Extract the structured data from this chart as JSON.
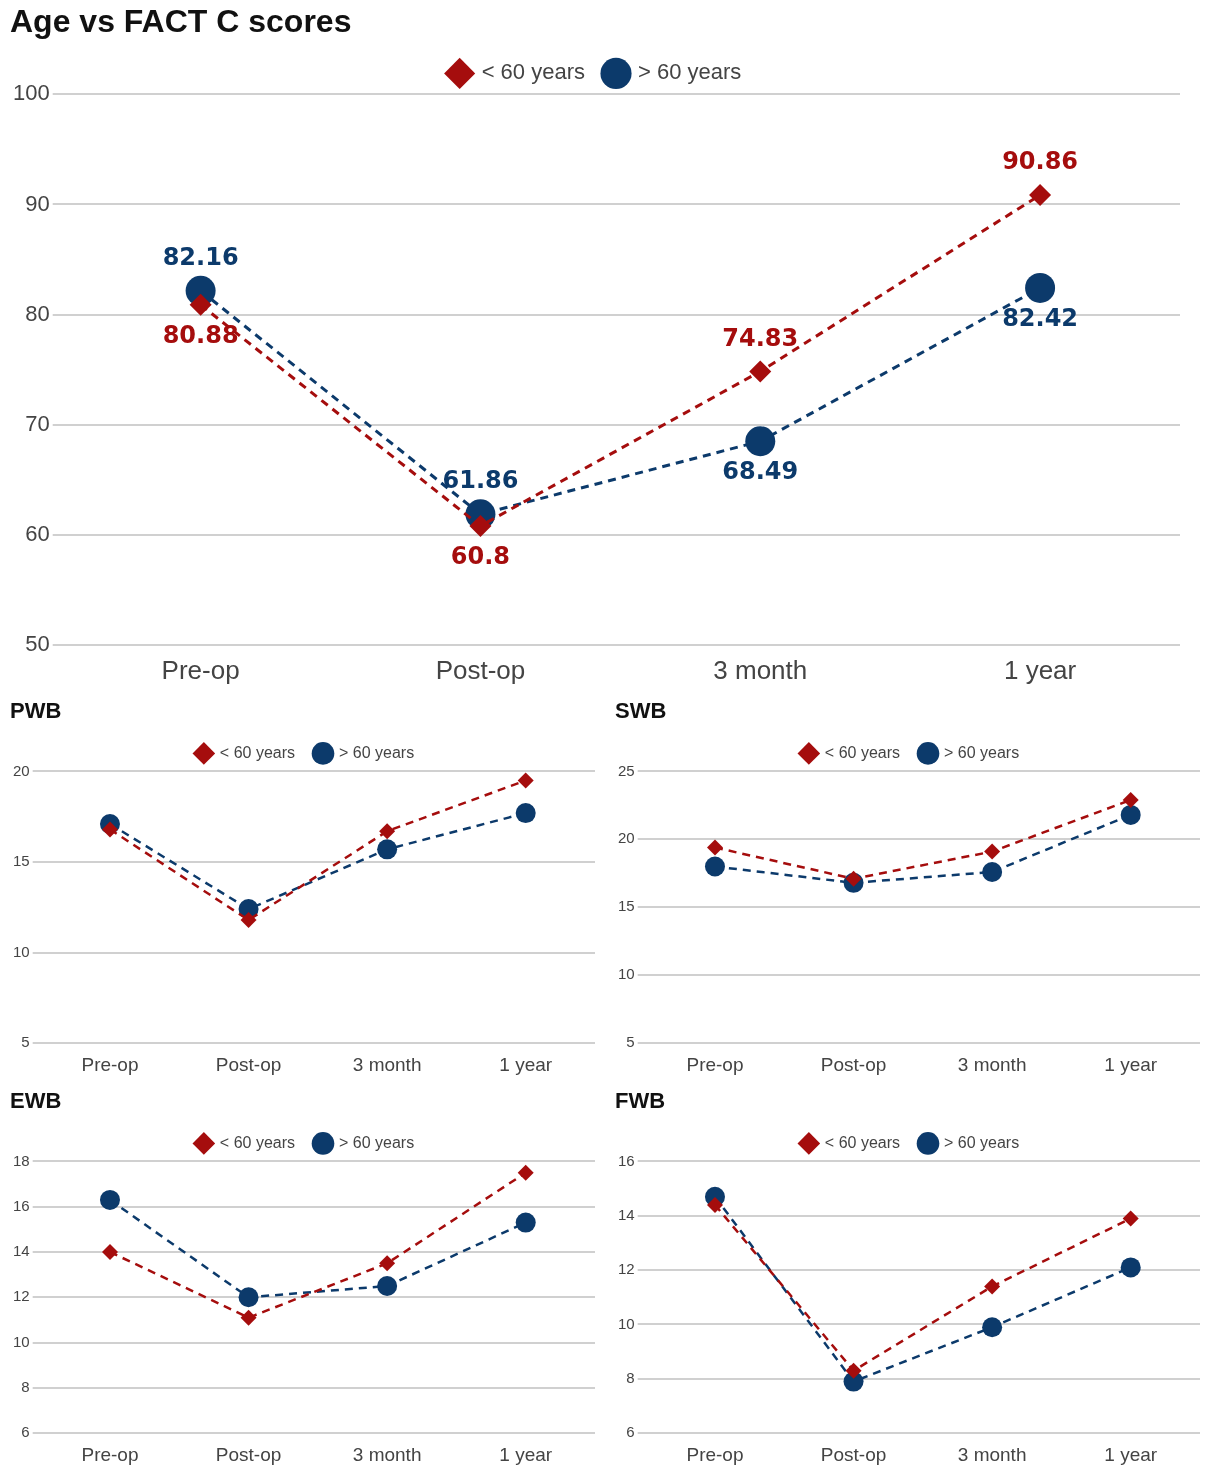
{
  "chart_data": [
    {
      "type": "line",
      "title": "Age vs FACT C scores",
      "categories": [
        "Pre-op",
        "Post-op",
        "3 month",
        "1 year"
      ],
      "series": [
        {
          "name": "< 60 years",
          "color": "#a50d0d",
          "marker": "diamond",
          "values": [
            80.88,
            60.8,
            74.83,
            90.86
          ]
        },
        {
          "name": "> 60 years",
          "color": "#0c3a6b",
          "marker": "circle",
          "values": [
            82.16,
            61.86,
            68.49,
            82.42
          ]
        }
      ],
      "ylim": [
        50,
        100
      ],
      "yticks": [
        50,
        60,
        70,
        80,
        90,
        100
      ],
      "grid": "y",
      "legend": "top",
      "line_style": "dashed",
      "data_labels": true
    },
    {
      "type": "line",
      "title": "PWB",
      "categories": [
        "Pre-op",
        "Post-op",
        "3 month",
        "1 year"
      ],
      "series": [
        {
          "name": "< 60 years",
          "color": "#a50d0d",
          "marker": "diamond",
          "values": [
            16.8,
            11.8,
            16.7,
            19.5
          ]
        },
        {
          "name": "> 60 years",
          "color": "#0c3a6b",
          "marker": "circle",
          "values": [
            17.1,
            12.4,
            15.7,
            17.7
          ]
        }
      ],
      "ylim": [
        5,
        20
      ],
      "yticks": [
        5,
        10,
        15,
        20
      ],
      "grid": "y",
      "legend": "top",
      "line_style": "dashed"
    },
    {
      "type": "line",
      "title": "SWB",
      "categories": [
        "Pre-op",
        "Post-op",
        "3 month",
        "1 year"
      ],
      "series": [
        {
          "name": "< 60 years",
          "color": "#a50d0d",
          "marker": "diamond",
          "values": [
            19.4,
            17.1,
            19.1,
            22.9
          ]
        },
        {
          "name": "> 60 years",
          "color": "#0c3a6b",
          "marker": "circle",
          "values": [
            18.0,
            16.8,
            17.6,
            21.8
          ]
        }
      ],
      "ylim": [
        5,
        25
      ],
      "yticks": [
        5,
        10,
        15,
        20,
        25
      ],
      "grid": "y",
      "legend": "top",
      "line_style": "dashed"
    },
    {
      "type": "line",
      "title": "EWB",
      "categories": [
        "Pre-op",
        "Post-op",
        "3 month",
        "1 year"
      ],
      "series": [
        {
          "name": "< 60 years",
          "color": "#a50d0d",
          "marker": "diamond",
          "values": [
            14.0,
            11.1,
            13.5,
            17.5
          ]
        },
        {
          "name": "> 60 years",
          "color": "#0c3a6b",
          "marker": "circle",
          "values": [
            16.3,
            12.0,
            12.5,
            15.3
          ]
        }
      ],
      "ylim": [
        6,
        18
      ],
      "yticks": [
        6,
        8,
        10,
        12,
        14,
        16,
        18
      ],
      "grid": "y",
      "legend": "top",
      "line_style": "dashed"
    },
    {
      "type": "line",
      "title": "FWB",
      "categories": [
        "Pre-op",
        "Post-op",
        "3 month",
        "1 year"
      ],
      "series": [
        {
          "name": "< 60 years",
          "color": "#a50d0d",
          "marker": "diamond",
          "values": [
            14.4,
            8.3,
            11.4,
            13.9
          ]
        },
        {
          "name": "> 60 years",
          "color": "#0c3a6b",
          "marker": "circle",
          "values": [
            14.7,
            7.9,
            9.9,
            12.1
          ]
        }
      ],
      "ylim": [
        6,
        16
      ],
      "yticks": [
        6,
        8,
        10,
        12,
        14,
        16
      ],
      "grid": "y",
      "legend": "top",
      "line_style": "dashed"
    }
  ]
}
